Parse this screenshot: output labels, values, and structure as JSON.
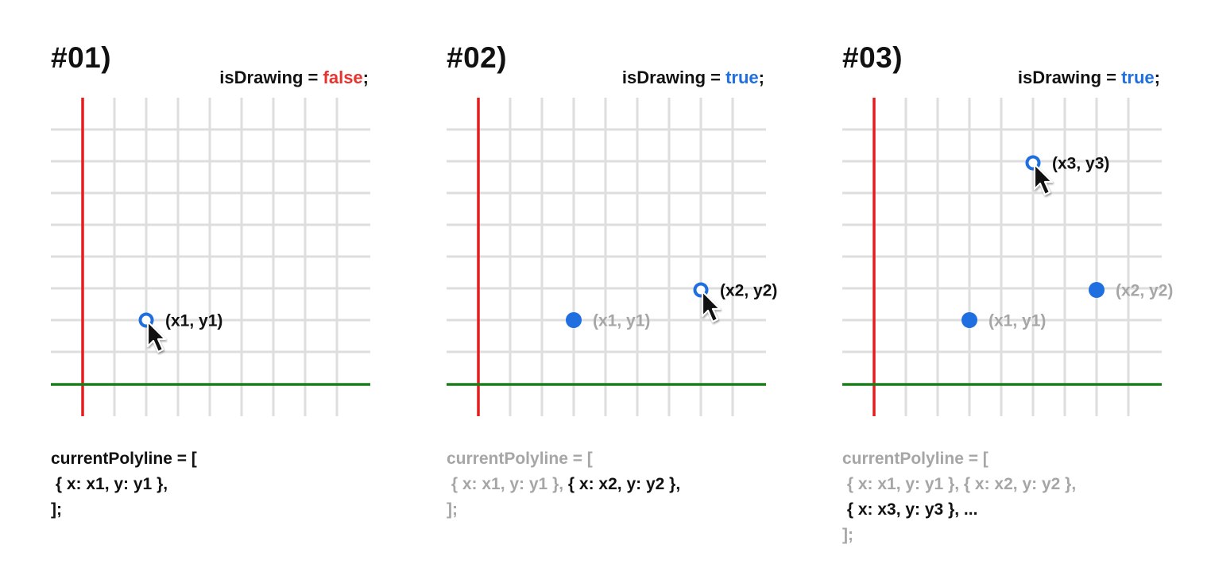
{
  "panels": [
    {
      "step": "#01)",
      "state": {
        "var": "isDrawing",
        "eq": " = ",
        "value": "false",
        "semi": ";"
      },
      "points": [
        {
          "label": "(x1, y1)",
          "col": 2,
          "row": 7,
          "style": "active"
        }
      ],
      "code": {
        "open": "currentPolyline = [",
        "lines": [
          [
            {
              "text": " { x: x1, y: y1 },",
              "dim": false
            }
          ]
        ],
        "close": "];",
        "header_dim": false,
        "close_dim": false
      }
    },
    {
      "step": "#02)",
      "state": {
        "var": "isDrawing",
        "eq": " = ",
        "value": "true",
        "semi": ";"
      },
      "points": [
        {
          "label": "(x1, y1)",
          "col": 3,
          "row": 7,
          "style": "past"
        },
        {
          "label": "(x2, y2)",
          "col": 7,
          "row": 6.05,
          "style": "active"
        }
      ],
      "code": {
        "open": "currentPolyline = [",
        "lines": [
          [
            {
              "text": " { x: x1, y: y1 }, ",
              "dim": true
            },
            {
              "text": "{ x: x2, y: y2 },",
              "dim": false
            }
          ]
        ],
        "close": "];",
        "header_dim": true,
        "close_dim": true
      }
    },
    {
      "step": "#03)",
      "state": {
        "var": "isDrawing",
        "eq": " = ",
        "value": "true",
        "semi": ";"
      },
      "points": [
        {
          "label": "(x1, y1)",
          "col": 3,
          "row": 7,
          "style": "past"
        },
        {
          "label": "(x2, y2)",
          "col": 7,
          "row": 6.05,
          "style": "past"
        },
        {
          "label": "(x3, y3)",
          "col": 5,
          "row": 2.05,
          "style": "active"
        }
      ],
      "code": {
        "open": "currentPolyline = [",
        "lines": [
          [
            {
              "text": " { x: x1, y: y1 }, { x: x2, y: y2 },",
              "dim": true
            }
          ],
          [
            {
              "text": " { x: x3, y: y3 }, ...",
              "dim": false
            }
          ]
        ],
        "close": "];",
        "header_dim": true,
        "close_dim": true
      }
    }
  ],
  "colors": {
    "grid": "#dedede",
    "y_axis": "#e41e1e",
    "x_axis": "#1d7d1d",
    "point": "#1f6fe0",
    "active_text": "#111111",
    "past_text": "#a6a6a6",
    "false_value": "#e8332f",
    "true_value": "#1f6fe0"
  },
  "icons": {
    "cursor": "cursor-arrow-icon",
    "point_active": "ring-point-icon",
    "point_past": "dot-point-icon"
  }
}
